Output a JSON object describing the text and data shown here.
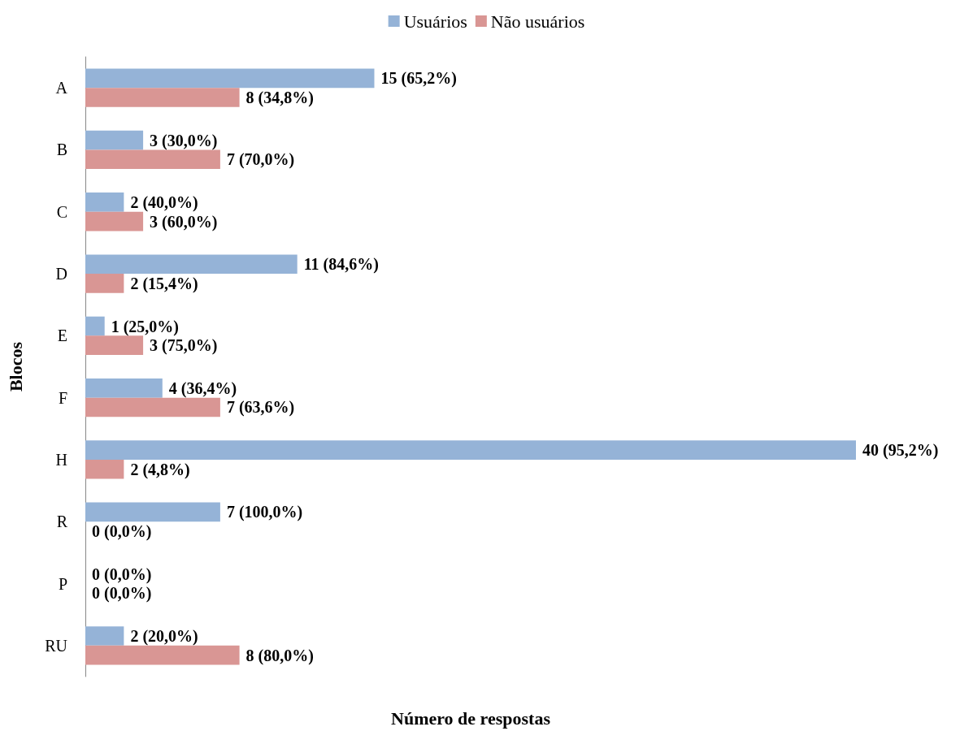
{
  "chart_data": {
    "type": "bar",
    "orientation": "horizontal",
    "xlabel": "Número de respostas",
    "ylabel": "Blocos",
    "categories": [
      "A",
      "B",
      "C",
      "D",
      "E",
      "F",
      "H",
      "R",
      "P",
      "RU"
    ],
    "legend": "top",
    "grid": false,
    "series": [
      {
        "name": "Usuários",
        "color": "#95b3d7",
        "values": [
          15,
          3,
          2,
          11,
          1,
          4,
          40,
          7,
          0,
          2
        ],
        "value_labels": [
          "15 (65,2%)",
          "3 (30,0%)",
          "2 (40,0%)",
          "11 (84,6%)",
          "1 (25,0%)",
          "4 (36,4%)",
          "40 (95,2%)",
          "7 (100,0%)",
          "0 (0,0%)",
          "2 (20,0%)"
        ]
      },
      {
        "name": "Não usuários",
        "color": "#d99694",
        "values": [
          8,
          7,
          3,
          2,
          3,
          7,
          2,
          0,
          0,
          8
        ],
        "value_labels": [
          "8 (34,8%)",
          "7 (70,0%)",
          "3 (60,0%)",
          "2 (15,4%)",
          "3 (75,0%)",
          "7 (63,6%)",
          "2 (4,8%)",
          "0 (0,0%)",
          "0 (0,0%)",
          "8 (80,0%)"
        ]
      }
    ]
  }
}
